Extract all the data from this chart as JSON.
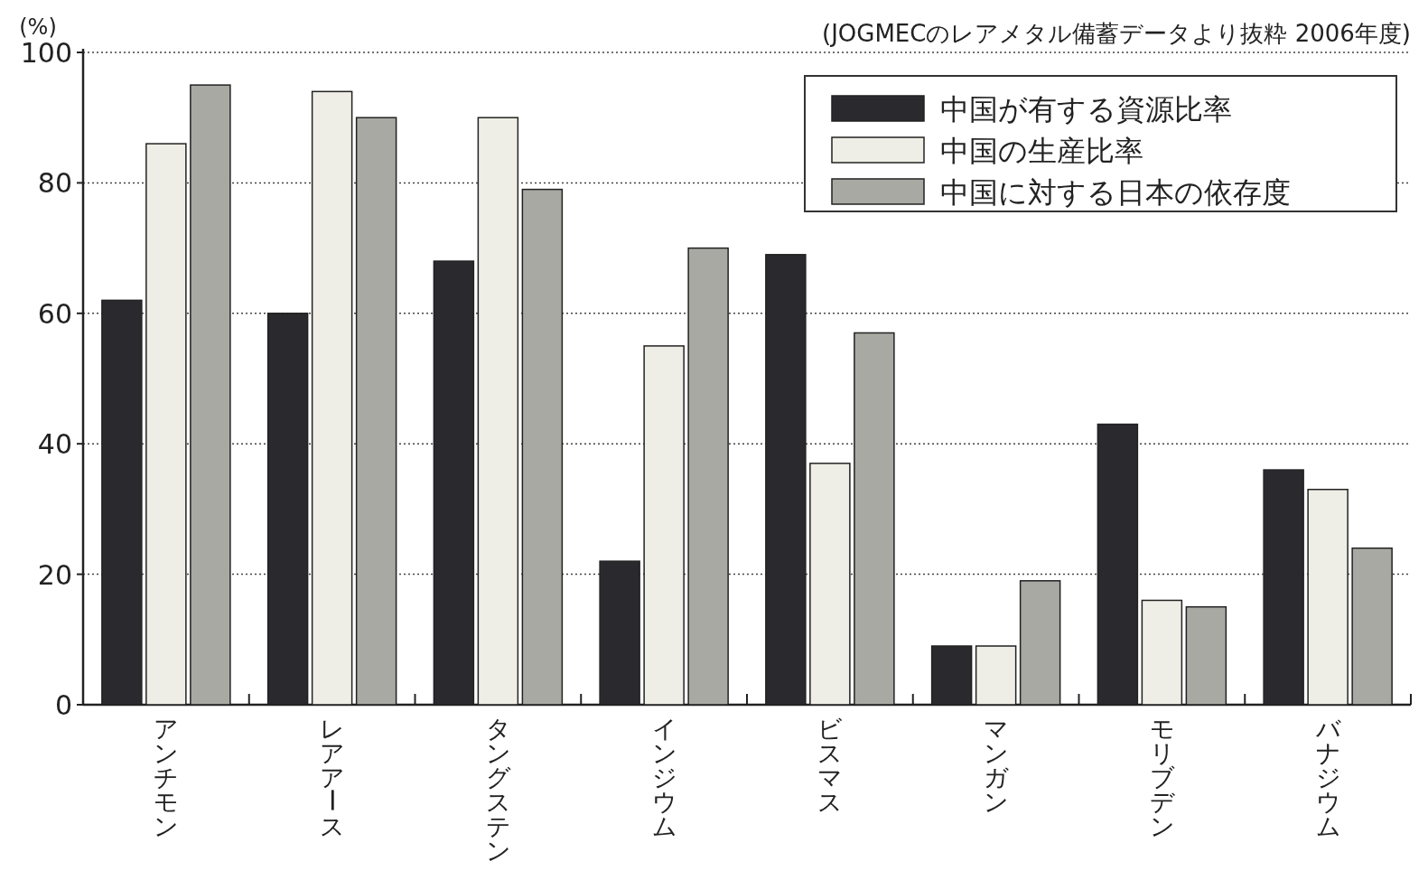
{
  "chart_data": {
    "type": "bar",
    "ylabel": "(%)",
    "annotations": [
      "(JOGMECのレアメタル備蓄データより抜粋 2006年度)"
    ],
    "categories": [
      "アンチモン",
      "レアアース",
      "タングステン",
      "インジウム",
      "ビスマス",
      "マンガン",
      "モリブデン",
      "バナジウム"
    ],
    "series": [
      {
        "name": "中国が有する資源比率",
        "color": "#2a2a2e",
        "values": [
          62,
          60,
          68,
          22,
          69,
          9,
          43,
          36
        ]
      },
      {
        "name": "中国の生産比率",
        "color": "#efeee6",
        "values": [
          86,
          94,
          90,
          55,
          37,
          9,
          16,
          33
        ]
      },
      {
        "name": "中国に対する日本の依存度",
        "color": "#a9a9a4",
        "values": [
          95,
          90,
          79,
          70,
          57,
          19,
          15,
          24
        ]
      }
    ],
    "ylim": [
      0,
      100
    ],
    "yticks": [
      0,
      20,
      40,
      60,
      80,
      100
    ],
    "grid": "y",
    "legend": "top right"
  }
}
